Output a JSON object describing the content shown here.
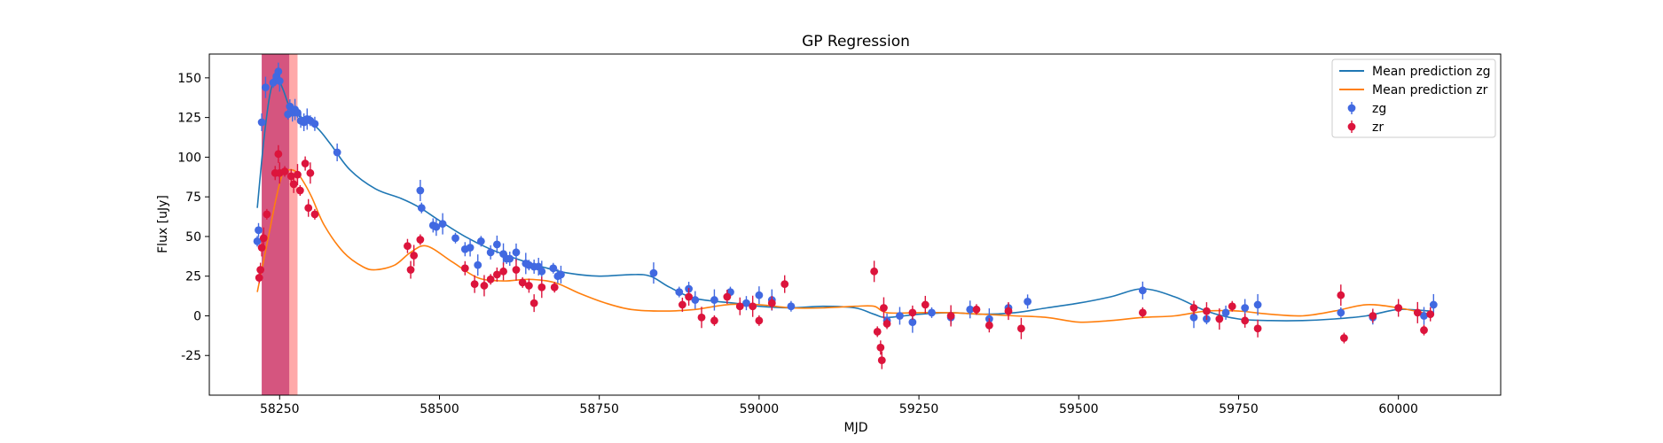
{
  "chart_data": {
    "type": "scatter",
    "title": "GP Regression",
    "xlabel": "MJD",
    "ylabel": "Flux [uJy]",
    "xlim": [
      58140,
      60160
    ],
    "ylim": [
      -50,
      165
    ],
    "xticks": [
      58250,
      58500,
      58750,
      59000,
      59250,
      59500,
      59750,
      60000
    ],
    "yticks": [
      -25,
      0,
      25,
      50,
      75,
      100,
      125,
      150
    ],
    "legend_position": "top-right",
    "grid": false,
    "legend": [
      {
        "label": "Mean prediction zg",
        "kind": "line",
        "color": "#1f77b4"
      },
      {
        "label": "Mean prediction zr",
        "kind": "line",
        "color": "#ff7f0e"
      },
      {
        "label": "zg",
        "kind": "errorbar",
        "color": "#4169e1"
      },
      {
        "label": "zr",
        "kind": "errorbar",
        "color": "#dc143c"
      }
    ],
    "shaded_regions": [
      {
        "x": [
          58222,
          58265
        ],
        "color": "#800080",
        "opacity": 0.6
      },
      {
        "x": [
          58222,
          58278
        ],
        "color": "#ff4040",
        "opacity": 0.45
      }
    ],
    "mean_prediction_zg": {
      "color": "#1f77b4",
      "x": [
        58215,
        58225,
        58235,
        58245,
        58255,
        58265,
        58275,
        58290,
        58310,
        58330,
        58360,
        58400,
        58440,
        58470,
        58500,
        58540,
        58580,
        58620,
        58660,
        58700,
        58750,
        58800,
        58830,
        58860,
        58900,
        58960,
        59000,
        59050,
        59100,
        59150,
        59180,
        59200,
        59250,
        59300,
        59350,
        59400,
        59450,
        59500,
        59550,
        59600,
        59650,
        59700,
        59750,
        59800,
        59850,
        59900,
        59950,
        60000,
        60050
      ],
      "y": [
        68,
        110,
        140,
        150,
        143,
        132,
        127,
        124,
        118,
        108,
        92,
        80,
        74,
        68,
        60,
        50,
        42,
        36,
        31,
        27,
        25,
        26,
        25,
        18,
        11,
        8,
        6,
        5,
        6,
        5,
        1,
        -1,
        1,
        2,
        1,
        2,
        5,
        8,
        12,
        17,
        12,
        3,
        -2,
        -3,
        -3,
        -2,
        0,
        4,
        3
      ]
    },
    "mean_prediction_zr": {
      "color": "#ff7f0e",
      "x": [
        58215,
        58225,
        58235,
        58245,
        58255,
        58265,
        58275,
        58285,
        58300,
        58320,
        58350,
        58380,
        58400,
        58430,
        58455,
        58480,
        58520,
        58560,
        58600,
        58640,
        58680,
        58720,
        58760,
        58800,
        58850,
        58900,
        58950,
        59000,
        59050,
        59100,
        59150,
        59180,
        59200,
        59250,
        59300,
        59350,
        59400,
        59450,
        59500,
        59550,
        59600,
        59650,
        59700,
        59750,
        59800,
        59850,
        59900,
        59950,
        60000,
        60050
      ],
      "y": [
        15,
        35,
        55,
        75,
        90,
        92,
        91,
        86,
        75,
        57,
        40,
        31,
        29,
        32,
        40,
        44,
        34,
        24,
        22,
        23,
        21,
        14,
        8,
        4,
        3,
        4,
        7,
        7,
        5,
        5,
        6,
        6,
        2,
        2,
        2,
        1,
        0,
        -1,
        -4,
        -3,
        -1,
        0,
        3,
        3,
        1,
        0,
        3,
        7,
        5,
        1
      ]
    },
    "series": [
      {
        "name": "zg",
        "color": "#4169e1",
        "x": [
          58215,
          58217,
          58222,
          58228,
          58240,
          58245,
          58248,
          58250,
          58263,
          58266,
          58270,
          58274,
          58278,
          58283,
          58288,
          58293,
          58298,
          58305,
          58340,
          58470,
          58472,
          58490,
          58495,
          58505,
          58525,
          58540,
          58548,
          58560,
          58565,
          58580,
          58590,
          58600,
          58605,
          58610,
          58620,
          58635,
          58640,
          58648,
          58655,
          58660,
          58678,
          58685,
          58690,
          58835,
          58875,
          58890,
          58900,
          58930,
          58955,
          58980,
          59000,
          59020,
          59050,
          59200,
          59220,
          59240,
          59270,
          59300,
          59330,
          59360,
          59390,
          59420,
          59600,
          59680,
          59700,
          59730,
          59760,
          59780,
          59910,
          59960,
          60040,
          60055
        ],
        "y": [
          47,
          54,
          122,
          144,
          147,
          151,
          154,
          148,
          127,
          132,
          128,
          130,
          128,
          123,
          122,
          124,
          123,
          121,
          103,
          79,
          68,
          57,
          56,
          58,
          49,
          42,
          43,
          32,
          47,
          40,
          45,
          39,
          36,
          36,
          40,
          33,
          32,
          31,
          31,
          28,
          30,
          25,
          26,
          27,
          15,
          17,
          10,
          10,
          15,
          8,
          13,
          10,
          6,
          -3,
          0,
          -4,
          2,
          -1,
          4,
          -2,
          5,
          9,
          16,
          -1,
          -2,
          2,
          5,
          7,
          2,
          -1,
          0,
          7
        ]
      },
      {
        "name": "zr",
        "color": "#dc143c",
        "x": [
          58218,
          58220,
          58222,
          58225,
          58230,
          58243,
          58248,
          58250,
          58258,
          58268,
          58272,
          58278,
          58282,
          58290,
          58295,
          58298,
          58305,
          58450,
          58455,
          58460,
          58470,
          58540,
          58555,
          58570,
          58580,
          58590,
          58600,
          58620,
          58630,
          58640,
          58648,
          58660,
          58680,
          58880,
          58890,
          58910,
          58930,
          58950,
          58970,
          58990,
          59000,
          59020,
          59040,
          59180,
          59185,
          59190,
          59192,
          59195,
          59200,
          59240,
          59260,
          59300,
          59340,
          59360,
          59390,
          59410,
          59600,
          59680,
          59700,
          59720,
          59740,
          59760,
          59780,
          59910,
          59915,
          59960,
          60000,
          60030,
          60040,
          60050
        ],
        "y": [
          24,
          29,
          43,
          49,
          64,
          90,
          102,
          90,
          91,
          88,
          83,
          89,
          79,
          96,
          68,
          90,
          64,
          44,
          29,
          38,
          48,
          30,
          20,
          19,
          23,
          26,
          28,
          29,
          21,
          19,
          8,
          18,
          18,
          7,
          12,
          -1,
          -3,
          12,
          6,
          6,
          -3,
          8,
          20,
          28,
          -10,
          -20,
          -28,
          5,
          -5,
          2,
          7,
          0,
          4,
          -6,
          3,
          -8,
          2,
          5,
          3,
          -2,
          6,
          -3,
          -8,
          13,
          -14,
          0,
          5,
          2,
          -9,
          1
        ]
      }
    ]
  }
}
